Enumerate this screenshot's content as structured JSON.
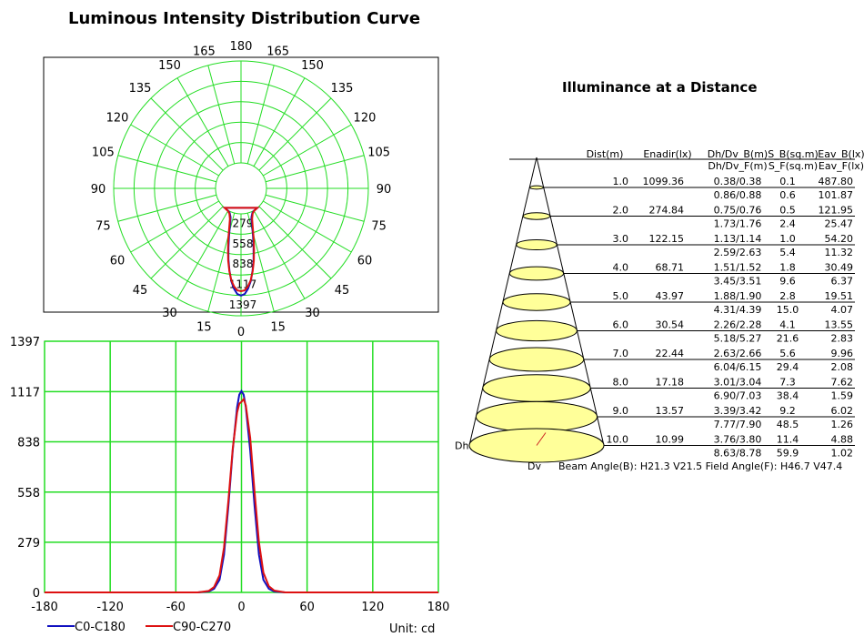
{
  "titles": {
    "polar": "Luminous Intensity Distribution Curve",
    "illuminance": "Illuminance at a Distance"
  },
  "colors": {
    "grid": "#22dd22",
    "c0": "#1010c0",
    "c90": "#dd1111",
    "cone": "#ffff99",
    "dv": "#cc2222"
  },
  "chart_data": [
    {
      "type": "polar",
      "title": "Luminous Intensity Distribution Curve",
      "angle_labels_left": [
        "0",
        "15",
        "30",
        "45",
        "60",
        "75",
        "90",
        "105",
        "120",
        "135",
        "150",
        "165",
        "180"
      ],
      "angle_labels_right": [
        "15",
        "30",
        "45",
        "60",
        "75",
        "90",
        "105",
        "120",
        "135",
        "150",
        "165"
      ],
      "radial_labels": [
        "279",
        "558",
        "838",
        "1117",
        "1397"
      ],
      "rmax": 1397,
      "series": [
        {
          "name": "C0-C180",
          "angles": [
            0,
            2,
            4,
            6,
            8,
            10,
            12,
            14,
            16,
            18,
            20,
            25,
            30,
            35,
            40
          ],
          "values": [
            1120,
            1100,
            1030,
            930,
            790,
            640,
            480,
            330,
            210,
            120,
            70,
            20,
            5,
            1,
            0
          ]
        },
        {
          "name": "C90-C270",
          "angles": [
            0,
            2,
            4,
            6,
            8,
            10,
            12,
            14,
            16,
            18,
            20,
            25,
            30,
            35,
            40
          ],
          "values": [
            1060,
            1050,
            1000,
            920,
            800,
            660,
            510,
            370,
            250,
            160,
            95,
            30,
            8,
            2,
            0
          ]
        }
      ]
    },
    {
      "type": "line",
      "xlim": [
        -180,
        180
      ],
      "ylim": [
        0,
        1397
      ],
      "x_ticks": [
        "-180",
        "-120",
        "-60",
        "0",
        "60",
        "120",
        "180"
      ],
      "y_ticks": [
        "0",
        "279",
        "558",
        "838",
        "1117",
        "1397"
      ],
      "unit": "Unit: cd",
      "series": [
        {
          "name": "C0-C180",
          "x": [
            -180,
            -40,
            -30,
            -25,
            -20,
            -16,
            -12,
            -8,
            -4,
            -2,
            0,
            2,
            4,
            8,
            12,
            16,
            20,
            25,
            30,
            40,
            180
          ],
          "y": [
            0,
            0,
            5,
            20,
            70,
            210,
            480,
            790,
            1030,
            1100,
            1120,
            1100,
            1030,
            790,
            480,
            210,
            70,
            20,
            5,
            0,
            0
          ]
        },
        {
          "name": "C90-C270",
          "x": [
            -180,
            -40,
            -30,
            -25,
            -20,
            -16,
            -12,
            -8,
            -4,
            -2,
            0,
            2,
            4,
            8,
            12,
            16,
            20,
            25,
            30,
            40,
            180
          ],
          "y": [
            0,
            0,
            8,
            30,
            95,
            250,
            510,
            800,
            1000,
            1050,
            1060,
            1075,
            1040,
            860,
            560,
            280,
            110,
            35,
            10,
            0,
            0
          ]
        }
      ]
    },
    {
      "type": "table",
      "title": "Illuminance at a Distance",
      "headers_top": [
        "Dist(m)",
        "Enadir(lx)",
        "Dh/Dv_B(m)",
        "S_B(sq.m)",
        "Eav_B(lx)"
      ],
      "headers_bottom": [
        "Dh/Dv_F(m)",
        "S_F(sq.m)",
        "Eav_F(lx)"
      ],
      "rows": [
        {
          "dist": "1.0",
          "enadir": "1099.36",
          "dhdv_b": "0.38/0.38",
          "s_b": "0.1",
          "eav_b": "487.80",
          "dhdv_f": "0.86/0.88",
          "s_f": "0.6",
          "eav_f": "101.87"
        },
        {
          "dist": "2.0",
          "enadir": "274.84",
          "dhdv_b": "0.75/0.76",
          "s_b": "0.5",
          "eav_b": "121.95",
          "dhdv_f": "1.73/1.76",
          "s_f": "2.4",
          "eav_f": "25.47"
        },
        {
          "dist": "3.0",
          "enadir": "122.15",
          "dhdv_b": "1.13/1.14",
          "s_b": "1.0",
          "eav_b": "54.20",
          "dhdv_f": "2.59/2.63",
          "s_f": "5.4",
          "eav_f": "11.32"
        },
        {
          "dist": "4.0",
          "enadir": "68.71",
          "dhdv_b": "1.51/1.52",
          "s_b": "1.8",
          "eav_b": "30.49",
          "dhdv_f": "3.45/3.51",
          "s_f": "9.6",
          "eav_f": "6.37"
        },
        {
          "dist": "5.0",
          "enadir": "43.97",
          "dhdv_b": "1.88/1.90",
          "s_b": "2.8",
          "eav_b": "19.51",
          "dhdv_f": "4.31/4.39",
          "s_f": "15.0",
          "eav_f": "4.07"
        },
        {
          "dist": "6.0",
          "enadir": "30.54",
          "dhdv_b": "2.26/2.28",
          "s_b": "4.1",
          "eav_b": "13.55",
          "dhdv_f": "5.18/5.27",
          "s_f": "21.6",
          "eav_f": "2.83"
        },
        {
          "dist": "7.0",
          "enadir": "22.44",
          "dhdv_b": "2.63/2.66",
          "s_b": "5.6",
          "eav_b": "9.96",
          "dhdv_f": "6.04/6.15",
          "s_f": "29.4",
          "eav_f": "2.08"
        },
        {
          "dist": "8.0",
          "enadir": "17.18",
          "dhdv_b": "3.01/3.04",
          "s_b": "7.3",
          "eav_b": "7.62",
          "dhdv_f": "6.90/7.03",
          "s_f": "38.4",
          "eav_f": "1.59"
        },
        {
          "dist": "9.0",
          "enadir": "13.57",
          "dhdv_b": "3.39/3.42",
          "s_b": "9.2",
          "eav_b": "6.02",
          "dhdv_f": "7.77/7.90",
          "s_f": "48.5",
          "eav_f": "1.26"
        },
        {
          "dist": "10.0",
          "enadir": "10.99",
          "dhdv_b": "3.76/3.80",
          "s_b": "11.4",
          "eav_b": "4.88",
          "dhdv_f": "8.63/8.78",
          "s_f": "59.9",
          "eav_f": "1.02"
        }
      ],
      "dh_label": "Dh",
      "dv_label": "Dv",
      "footer": "Beam Angle(B): H21.3 V21.5  Field Angle(F): H46.7 V47.4"
    }
  ]
}
